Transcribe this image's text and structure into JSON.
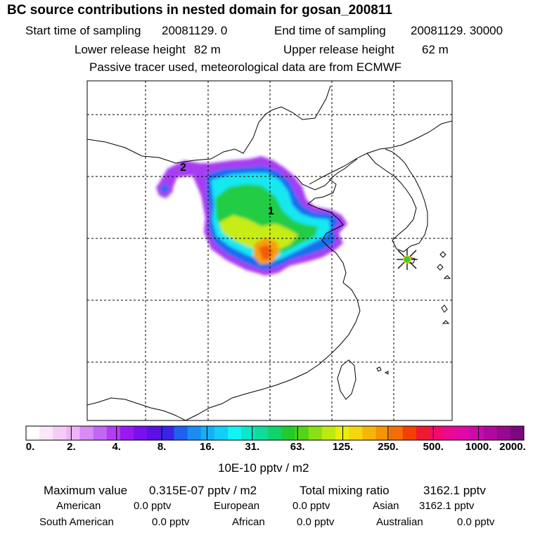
{
  "title": "BC  source contributions in nested domain for gosan_200811",
  "header": {
    "start_label": "Start time of sampling",
    "start_value": "20081129.     0",
    "end_label": "End time of sampling",
    "end_value": "20081129. 30000",
    "lower_label": "Lower release height",
    "lower_value": "82 m",
    "upper_label": "Upper release height",
    "upper_value": "62 m",
    "note": "Passive tracer used, meteorological data are from ECMWF"
  },
  "map": {
    "source_labels": [
      "1",
      "2"
    ],
    "receptor_icon": "star-marker-icon"
  },
  "colorbar": {
    "unit": "10E-10 pptv / m2",
    "tick_labels": [
      "0.",
      "2.",
      "4.",
      "8.",
      "16.",
      "31.",
      "63.",
      "125.",
      "250.",
      "500.",
      "1000.",
      "2000."
    ],
    "colors": [
      "#ffffff",
      "#fbe6fb",
      "#f4cdf6",
      "#eeb3f6",
      "#d78cf4",
      "#c266f4",
      "#b43cf5",
      "#9a18f2",
      "#7a10ec",
      "#5a10e6",
      "#3a22e8",
      "#2060ee",
      "#1a8cf4",
      "#16b0f6",
      "#12cff6",
      "#0ff4f4",
      "#0ee6c8",
      "#10da9c",
      "#12d26c",
      "#20cc2c",
      "#52d418",
      "#8ae014",
      "#bcea10",
      "#eaee0c",
      "#f4d60a",
      "#f6b608",
      "#f69406",
      "#f46c06",
      "#f24004",
      "#f01a30",
      "#f20a6c",
      "#ec0894",
      "#e008a8",
      "#cc0aa8",
      "#b2089e",
      "#980890",
      "#7c087e"
    ]
  },
  "stats": {
    "max_label": "Maximum value",
    "max_value": "0.315E-07 pptv / m2",
    "total_label": "Total mixing ratio",
    "total_value": "3162.1 pptv",
    "regions": [
      {
        "name": "American",
        "value": "0.0 pptv"
      },
      {
        "name": "European",
        "value": "0.0 pptv"
      },
      {
        "name": "Asian",
        "value": "3162.1 pptv"
      },
      {
        "name": "South American",
        "value": "0.0 pptv"
      },
      {
        "name": "African",
        "value": "0.0 pptv"
      },
      {
        "name": "Australian",
        "value": "0.0 pptv"
      }
    ]
  }
}
